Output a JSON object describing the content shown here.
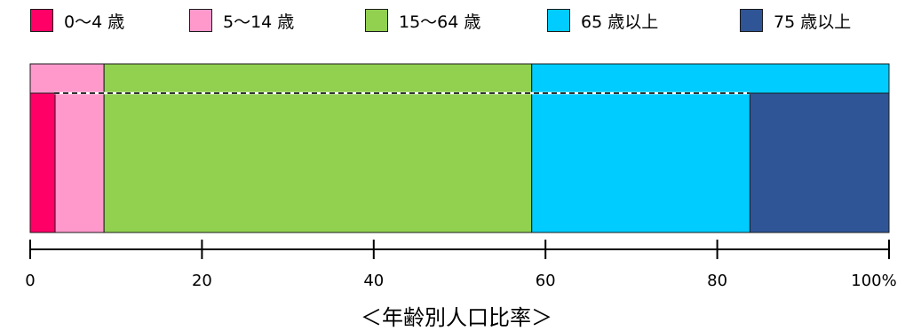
{
  "chart_data": {
    "type": "bar",
    "orientation": "horizontal-stacked",
    "title": "",
    "caption": "＜年齢別人口比率＞",
    "xlim": [
      0,
      100
    ],
    "legend": [
      {
        "name": "0〜4 歳",
        "color": "#ff0066"
      },
      {
        "name": "5〜14 歳",
        "color": "#ff99cc"
      },
      {
        "name": "15〜64 歳",
        "color": "#92d050"
      },
      {
        "name": "65 歳以上",
        "color": "#00ccff"
      },
      {
        "name": "75 歳以上",
        "color": "#2f5597"
      }
    ],
    "ticks": [
      {
        "value": 0,
        "label": "0"
      },
      {
        "value": 20,
        "label": "20"
      },
      {
        "value": 40,
        "label": "40"
      },
      {
        "value": 60,
        "label": "60"
      },
      {
        "value": 80,
        "label": "80"
      },
      {
        "value": 100,
        "label": "100%"
      }
    ],
    "series": [
      {
        "name": "0〜4 歳",
        "start": 0,
        "end": 2.9,
        "color": "#ff0066",
        "row": "bottom"
      },
      {
        "name": "5〜14 歳",
        "start": 0,
        "end": 8.6,
        "color": "#ff99cc",
        "row": "full"
      },
      {
        "name": "15〜64 歳",
        "start": 8.6,
        "end": 58.4,
        "color": "#92d050",
        "row": "full"
      },
      {
        "name": "65 歳以上",
        "start": 58.4,
        "end": 100,
        "color": "#00ccff",
        "row": "full"
      },
      {
        "name": "75 歳以上",
        "start": 83.8,
        "end": 100,
        "color": "#2f5597",
        "row": "bottom"
      }
    ]
  }
}
